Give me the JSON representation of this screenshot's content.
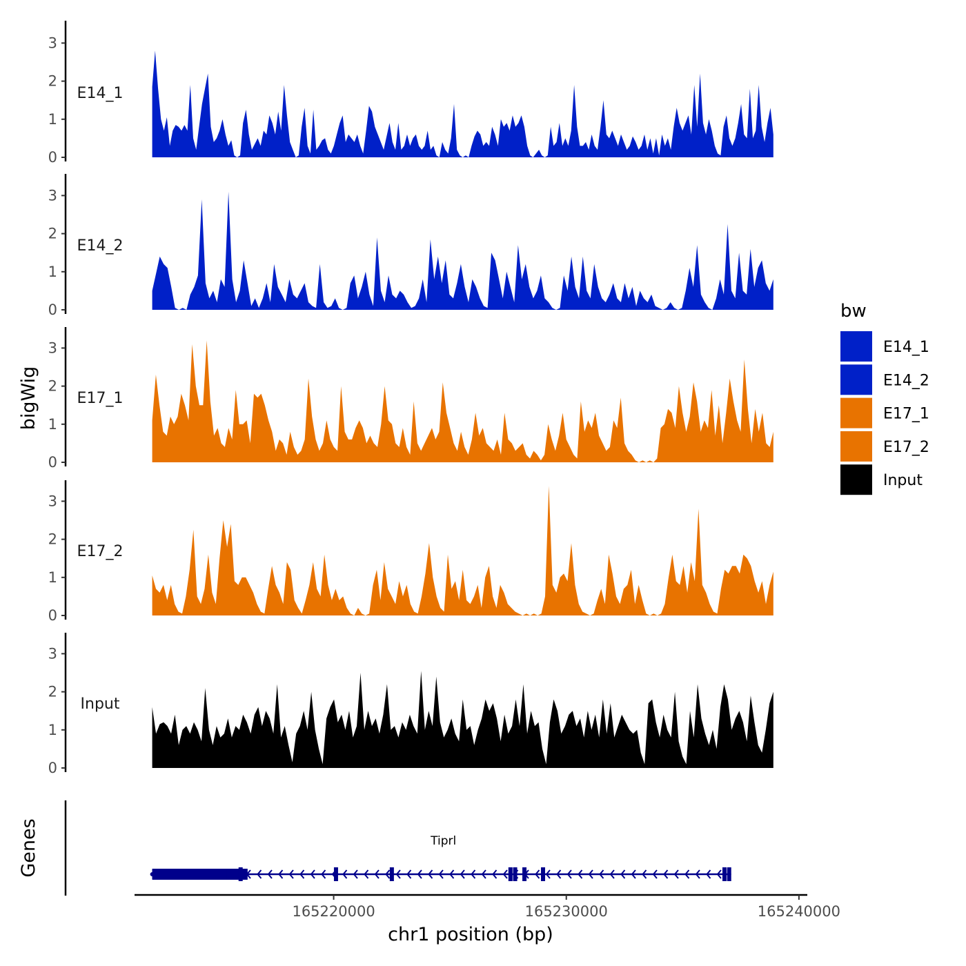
{
  "chart_data": {
    "type": "area",
    "ylabel": "bigWig",
    "genes_label": "Genes",
    "xlabel": "chr1 position (bp)",
    "x_range": [
      165211500,
      165240300
    ],
    "x_ticks": [
      165220000,
      165230000,
      165240000
    ],
    "x_tick_labels": [
      "165220000",
      "165230000",
      "165240000"
    ],
    "y_range": [
      0,
      3.5
    ],
    "y_ticks": [
      0,
      1,
      2,
      3
    ],
    "y_tick_labels": [
      "0",
      "1",
      "2",
      "3"
    ],
    "data_start": 165212200,
    "data_end": 165238900,
    "legend": {
      "title": "bw",
      "position": "right",
      "entries": [
        {
          "label": "E14_1",
          "color": "#0020C8"
        },
        {
          "label": "E14_2",
          "color": "#0020C8"
        },
        {
          "label": "E17_1",
          "color": "#E87300"
        },
        {
          "label": "E17_2",
          "color": "#E87300"
        },
        {
          "label": "Input",
          "color": "#000000"
        }
      ]
    },
    "series": [
      {
        "name": "E14_1",
        "color": "#0020C8",
        "values": [
          1.85,
          2.8,
          1.8,
          1.0,
          0.7,
          1.05,
          0.3,
          0.7,
          0.85,
          0.8,
          0.7,
          0.85,
          0.7,
          1.9,
          0.5,
          0.2,
          0.8,
          1.4,
          1.8,
          2.2,
          0.8,
          0.4,
          0.5,
          0.7,
          1.0,
          0.6,
          0.3,
          0.45,
          0.05,
          0,
          0.05,
          0.9,
          1.25,
          0.6,
          0.2,
          0.35,
          0.5,
          0.3,
          0.7,
          0.6,
          1.1,
          0.9,
          0.6,
          1.2,
          0.7,
          1.9,
          1.1,
          0.4,
          0.2,
          0,
          0.05,
          0.8,
          1.3,
          0.3,
          0.1,
          1.25,
          0.2,
          0.3,
          0.45,
          0.5,
          0.2,
          0.1,
          0.3,
          0.6,
          0.9,
          1.1,
          0.4,
          0.6,
          0.5,
          0.4,
          0.6,
          0.3,
          0.1,
          0.7,
          1.35,
          1.2,
          0.8,
          0.6,
          0.4,
          0.2,
          0.55,
          0.9,
          0.4,
          0.2,
          0.9,
          0.2,
          0.3,
          0.6,
          0.3,
          0.5,
          0.6,
          0.3,
          0.2,
          0.3,
          0.7,
          0.2,
          0.3,
          0.05,
          0,
          0.4,
          0.2,
          0.1,
          0.5,
          1.4,
          0.2,
          0.05,
          0,
          0.05,
          0,
          0.3,
          0.55,
          0.7,
          0.6,
          0.3,
          0.4,
          0.3,
          0.8,
          0.6,
          0.3,
          1.0,
          0.8,
          0.9,
          0.7,
          1.1,
          0.8,
          0.9,
          1.1,
          0.8,
          0.3,
          0.05,
          0,
          0.1,
          0.2,
          0.05,
          0,
          0.05,
          0.8,
          0.3,
          0.4,
          0.9,
          0.3,
          0.5,
          0.3,
          0.7,
          1.9,
          0.8,
          0.3,
          0.3,
          0.4,
          0.2,
          0.6,
          0.3,
          0.2,
          0.8,
          1.5,
          0.6,
          0.5,
          0.7,
          0.5,
          0.3,
          0.6,
          0.4,
          0.2,
          0.3,
          0.55,
          0.4,
          0.2,
          0.3,
          0.6,
          0.2,
          0.5,
          0.1,
          0.5,
          0.05,
          0.6,
          0.3,
          0.5,
          0.2,
          0.8,
          1.3,
          0.9,
          0.7,
          0.9,
          1.1,
          0.6,
          1.9,
          0.8,
          2.2,
          0.9,
          0.6,
          1.0,
          0.7,
          0.3,
          0.1,
          0.05,
          0.8,
          1.1,
          0.5,
          0.3,
          0.5,
          0.9,
          1.4,
          0.6,
          0.5,
          1.8,
          0.5,
          0.7,
          1.9,
          0.8,
          0.4,
          0.9,
          1.3,
          0.6
        ]
      },
      {
        "name": "E14_2",
        "color": "#0020C8",
        "values": [
          0.5,
          0.95,
          1.4,
          1.2,
          1.1,
          0.6,
          0.05,
          0,
          0.05,
          0,
          0.4,
          0.6,
          0.9,
          2.9,
          0.7,
          0.3,
          0.5,
          0.2,
          0.8,
          0.6,
          3.1,
          0.8,
          0.2,
          0.5,
          1.3,
          0.7,
          0.1,
          0.3,
          0.05,
          0.3,
          0.7,
          0.2,
          1.2,
          0.6,
          0.4,
          0.2,
          0.8,
          0.4,
          0.3,
          0.5,
          0.7,
          0.2,
          0.1,
          0.05,
          1.2,
          0.2,
          0.05,
          0.1,
          0.3,
          0.05,
          0,
          0.05,
          0.7,
          0.9,
          0.3,
          0.6,
          1.0,
          0.4,
          0.1,
          1.9,
          0.5,
          0.2,
          0.9,
          0.4,
          0.3,
          0.5,
          0.4,
          0.2,
          0.05,
          0.1,
          0.3,
          0.8,
          0.2,
          1.85,
          0.8,
          1.4,
          0.7,
          1.3,
          0.4,
          0.3,
          0.7,
          1.2,
          0.6,
          0.2,
          0.8,
          0.6,
          0.3,
          0.1,
          0.05,
          1.5,
          1.3,
          0.8,
          0.3,
          1.0,
          0.6,
          0.2,
          1.7,
          0.8,
          1.2,
          0.6,
          0.3,
          0.5,
          0.9,
          0.3,
          0.2,
          0.05,
          0,
          0.05,
          0.9,
          0.5,
          1.4,
          0.6,
          0.3,
          1.4,
          0.5,
          0.3,
          1.2,
          0.6,
          0.3,
          0.2,
          0.4,
          0.7,
          0.3,
          0.2,
          0.7,
          0.3,
          0.6,
          0.1,
          0.5,
          0.3,
          0.2,
          0.4,
          0.1,
          0.05,
          0,
          0.05,
          0.2,
          0.05,
          0,
          0.05,
          0.5,
          1.1,
          0.6,
          1.7,
          0.4,
          0.2,
          0.05,
          0,
          0.3,
          0.8,
          0.4,
          2.25,
          0.5,
          0.3,
          1.5,
          0.5,
          0.4,
          1.6,
          0.6,
          1.1,
          1.3,
          0.7,
          0.5,
          0.8
        ]
      },
      {
        "name": "E17_1",
        "color": "#E87300",
        "values": [
          1.1,
          2.3,
          1.5,
          0.8,
          0.7,
          1.2,
          1.0,
          1.2,
          1.8,
          1.5,
          1.1,
          3.1,
          2.0,
          1.5,
          1.5,
          3.2,
          1.6,
          0.7,
          0.9,
          0.5,
          0.4,
          0.9,
          0.6,
          1.9,
          1.0,
          1.0,
          1.1,
          0.5,
          1.8,
          1.7,
          1.8,
          1.5,
          1.1,
          0.8,
          0.3,
          0.6,
          0.5,
          0.2,
          0.8,
          0.4,
          0.2,
          0.3,
          0.6,
          2.2,
          1.2,
          0.6,
          0.3,
          0.5,
          1.1,
          0.6,
          0.4,
          0.3,
          2.0,
          0.8,
          0.6,
          0.6,
          0.9,
          1.1,
          0.9,
          0.5,
          0.7,
          0.5,
          0.4,
          1.0,
          2.0,
          1.1,
          1.0,
          0.5,
          0.4,
          0.9,
          0.4,
          0.2,
          1.6,
          0.5,
          0.3,
          0.5,
          0.7,
          0.9,
          0.6,
          0.8,
          2.1,
          1.3,
          0.9,
          0.5,
          0.3,
          0.8,
          0.4,
          0.2,
          0.6,
          1.3,
          0.7,
          0.9,
          0.5,
          0.4,
          0.3,
          0.6,
          0.2,
          1.3,
          0.6,
          0.5,
          0.3,
          0.4,
          0.5,
          0.2,
          0.1,
          0.3,
          0.2,
          0.05,
          0.2,
          1.0,
          0.6,
          0.3,
          0.7,
          1.3,
          0.6,
          0.4,
          0.2,
          0.1,
          1.6,
          0.8,
          1.1,
          0.9,
          1.3,
          0.7,
          0.5,
          0.3,
          0.4,
          1.1,
          0.9,
          1.7,
          0.5,
          0.3,
          0.2,
          0.05,
          0,
          0.05,
          0,
          0.05,
          0,
          0.1,
          0.9,
          1.0,
          1.4,
          1.3,
          0.9,
          2.0,
          1.3,
          0.8,
          1.2,
          2.1,
          1.6,
          0.8,
          1.1,
          0.9,
          1.9,
          0.7,
          1.5,
          0.5,
          1.3,
          2.2,
          1.6,
          1.1,
          0.8,
          2.7,
          1.4,
          0.5,
          1.4,
          0.8,
          1.3,
          0.5,
          0.4,
          0.8
        ]
      },
      {
        "name": "E17_2",
        "color": "#E87300",
        "values": [
          1.05,
          0.7,
          0.6,
          0.8,
          0.4,
          0.8,
          0.3,
          0.1,
          0.05,
          0.5,
          1.2,
          2.25,
          0.5,
          0.3,
          0.7,
          1.6,
          0.6,
          0.3,
          1.5,
          2.5,
          1.8,
          2.4,
          0.9,
          0.8,
          1.0,
          1.0,
          0.8,
          0.6,
          0.3,
          0.1,
          0.05,
          0.7,
          1.3,
          0.8,
          0.6,
          0.3,
          1.4,
          1.2,
          0.4,
          0.2,
          0.05,
          0.4,
          0.8,
          1.4,
          0.7,
          0.5,
          1.6,
          0.8,
          0.4,
          0.7,
          0.4,
          0.5,
          0.2,
          0.05,
          0,
          0.2,
          0.05,
          0,
          0.05,
          0.8,
          1.2,
          0.4,
          1.4,
          0.7,
          0.5,
          0.3,
          0.9,
          0.5,
          0.8,
          0.3,
          0.1,
          0.05,
          0.5,
          1.1,
          1.9,
          1.0,
          0.5,
          0.2,
          0.1,
          1.6,
          0.7,
          0.9,
          0.4,
          1.2,
          0.4,
          0.3,
          0.5,
          0.8,
          0.2,
          1.0,
          1.3,
          0.5,
          0.2,
          0.8,
          0.6,
          0.3,
          0.2,
          0.1,
          0.05,
          0,
          0.05,
          0,
          0.05,
          0,
          0.05,
          0.5,
          3.4,
          0.8,
          0.6,
          1.0,
          1.1,
          0.9,
          1.9,
          0.8,
          0.3,
          0.1,
          0.05,
          0,
          0.05,
          0.4,
          0.7,
          0.3,
          1.6,
          1.1,
          0.5,
          0.3,
          0.7,
          0.8,
          1.2,
          0.3,
          0.8,
          0.4,
          0.05,
          0,
          0.05,
          0,
          0.05,
          0.3,
          1.0,
          1.6,
          0.9,
          0.8,
          1.3,
          0.6,
          1.4,
          0.9,
          2.8,
          0.8,
          0.6,
          0.3,
          0.1,
          0.05,
          0.7,
          1.2,
          1.1,
          1.3,
          1.3,
          1.1,
          1.6,
          1.5,
          1.3,
          0.9,
          0.6,
          0.9,
          0.3,
          0.8,
          1.15
        ]
      },
      {
        "name": "Input",
        "color": "#000000",
        "values": [
          1.6,
          0.9,
          1.15,
          1.2,
          1.1,
          0.9,
          1.4,
          0.6,
          1.0,
          1.1,
          0.9,
          1.2,
          1.0,
          0.7,
          2.1,
          1.0,
          0.6,
          1.1,
          0.8,
          0.9,
          1.3,
          0.8,
          1.1,
          1.0,
          1.4,
          1.2,
          0.9,
          1.4,
          1.6,
          1.1,
          1.5,
          1.3,
          0.9,
          2.2,
          0.8,
          1.1,
          0.6,
          0.15,
          0.9,
          1.1,
          1.5,
          1.0,
          2.0,
          1.0,
          0.5,
          0.1,
          1.3,
          1.6,
          1.8,
          1.2,
          1.4,
          1.0,
          1.5,
          0.8,
          1.1,
          2.5,
          1.0,
          1.5,
          1.1,
          1.3,
          0.9,
          1.4,
          2.2,
          1.0,
          1.1,
          0.8,
          1.2,
          1.0,
          1.4,
          1.1,
          0.9,
          2.55,
          1.0,
          1.5,
          1.1,
          2.4,
          1.2,
          0.8,
          1.0,
          1.3,
          0.9,
          0.7,
          1.8,
          1.0,
          1.1,
          0.6,
          1.0,
          1.3,
          1.8,
          1.5,
          1.7,
          1.3,
          0.7,
          1.4,
          0.9,
          1.1,
          1.8,
          1.1,
          2.2,
          0.9,
          1.5,
          1.1,
          1.2,
          0.5,
          0.1,
          1.2,
          1.8,
          1.5,
          0.9,
          1.1,
          1.4,
          1.5,
          1.1,
          1.3,
          0.8,
          1.5,
          1.0,
          1.4,
          0.8,
          1.8,
          0.9,
          1.7,
          0.8,
          1.1,
          1.4,
          1.2,
          1.0,
          0.9,
          1.0,
          0.4,
          0.1,
          1.7,
          1.8,
          1.2,
          0.8,
          1.4,
          1.0,
          0.8,
          2.0,
          0.7,
          0.3,
          0.1,
          1.5,
          0.8,
          2.2,
          1.3,
          0.9,
          0.6,
          1.0,
          0.5,
          1.6,
          2.2,
          1.8,
          1.0,
          1.3,
          1.5,
          1.2,
          0.7,
          1.9,
          1.2,
          0.6,
          0.4,
          1.0,
          1.7,
          2.0
        ]
      }
    ],
    "genes": [
      {
        "name": "Tiprl",
        "strand": "-",
        "start": 165212200,
        "end": 165237000,
        "utr": [
          165212200,
          165215400
        ],
        "cds_start_block": [
          165215400,
          165216300
        ],
        "exons": [
          165216000,
          165220100,
          165222500,
          165227600,
          165227800,
          165228200,
          165229000,
          165236800,
          165237000
        ]
      }
    ]
  }
}
